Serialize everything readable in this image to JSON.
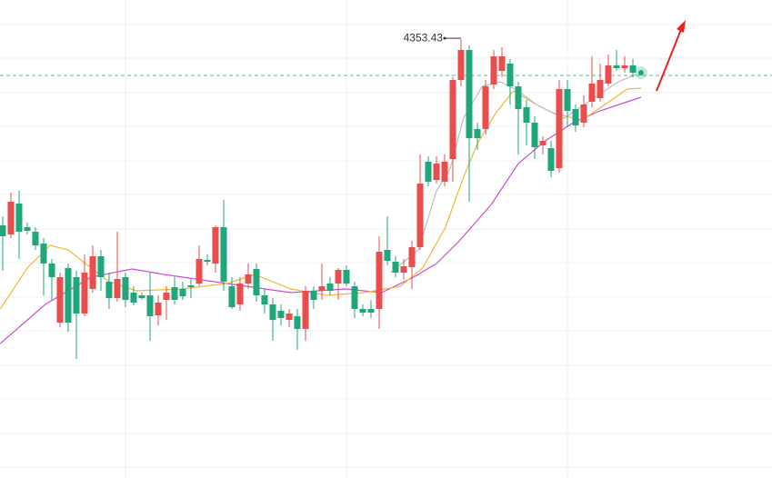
{
  "chart_data": {
    "type": "candlestick",
    "xlim": [
      -0.33,
      94
    ],
    "ylim": [
      4112,
      4375
    ],
    "xticks": [
      15,
      42,
      69
    ],
    "yticks": [
      4361.5,
      4343,
      4324,
      4305.5,
      4286.5,
      4268,
      4249,
      4230.5,
      4211.5,
      4193,
      4174,
      4155.5,
      4136.5,
      4118
    ],
    "grid": true,
    "up_color": "#eb4d4d",
    "down_color": "#1fa67a",
    "open": [
      4251,
      4246,
      4263,
      4250,
      4247.5,
      4241,
      4230,
      4197.5,
      4227.5,
      4222.5,
      4202.5,
      4216,
      4234,
      4220,
      4211,
      4222.5,
      4214,
      4212.5,
      4212.5,
      4201.5,
      4210,
      4217,
      4216,
      4218,
      4219,
      4232,
      4230,
      4250,
      4217.5,
      4207.5,
      4219,
      4227,
      4212.5,
      4207.5,
      4204,
      4199,
      4201,
      4194,
      4215,
      4215,
      4219,
      4219,
      4226.5,
      4217.5,
      4205,
      4205,
      4205,
      4237.5,
      4231,
      4225,
      4228,
      4239,
      4286,
      4276,
      4275,
      4287.5,
      4331,
      4347.5,
      4304,
      4304,
      4328.5,
      4336,
      4340,
      4327.5,
      4316,
      4307.5,
      4295,
      4293.5,
      4282.5,
      4326,
      4315,
      4307.5,
      4319,
      4321,
      4329,
      4339,
      4337.5,
      4339
    ],
    "high": [
      4256,
      4269,
      4270,
      4252.5,
      4250,
      4244,
      4232.5,
      4225,
      4230,
      4226,
      4235,
      4240,
      4237.5,
      4225,
      4247.5,
      4225,
      4217.5,
      4214,
      4225,
      4212.5,
      4217.5,
      4222.5,
      4220,
      4222,
      4240,
      4235,
      4251,
      4265,
      4222.5,
      4222.5,
      4230,
      4230,
      4216,
      4211,
      4207.5,
      4205,
      4205,
      4217.5,
      4217.5,
      4230,
      4222.5,
      4227.5,
      4229,
      4220,
      4207.5,
      4210,
      4245,
      4256,
      4234,
      4232.5,
      4242.5,
      4290,
      4289,
      4289,
      4290,
      4332.5,
      4353.43,
      4350,
      4307.5,
      4331,
      4347.5,
      4349,
      4342.5,
      4330,
      4320,
      4311,
      4300,
      4297.5,
      4331,
      4331,
      4317.5,
      4322.5,
      4344,
      4340,
      4345,
      4347.5,
      4344,
      4342.5
    ],
    "low": [
      4226,
      4244,
      4232.5,
      4246,
      4237.5,
      4212.5,
      4210,
      4195,
      4192.5,
      4177.5,
      4201,
      4214,
      4215,
      4205,
      4209,
      4206,
      4207,
      4210,
      4187.5,
      4196,
      4199,
      4207.5,
      4210,
      4211,
      4217.5,
      4229,
      4225,
      4215,
      4205,
      4204,
      4216,
      4209,
      4202.5,
      4187.5,
      4196,
      4195,
      4182.5,
      4187.5,
      4205,
      4210,
      4212.5,
      4210,
      4217.5,
      4200,
      4201,
      4200,
      4194,
      4229,
      4222.5,
      4221,
      4216,
      4237.5,
      4272.5,
      4274,
      4272.5,
      4275,
      4327.5,
      4264,
      4292.5,
      4301,
      4326,
      4332.5,
      4317.5,
      4290,
      4295,
      4287.5,
      4290,
      4277.5,
      4280,
      4305,
      4302.5,
      4305,
      4316,
      4319,
      4327.5,
      4336,
      4335,
      4332.5
    ],
    "close": [
      4245,
      4264,
      4247.5,
      4248,
      4240,
      4230,
      4222.5,
      4222.5,
      4197.5,
      4202.5,
      4225,
      4234,
      4222.5,
      4211,
      4221.5,
      4210,
      4208.5,
      4211,
      4201,
      4208.5,
      4214,
      4210,
      4212,
      4217,
      4232.5,
      4231,
      4250,
      4220,
      4206,
      4219,
      4224,
      4212.5,
      4207.5,
      4199,
      4200,
      4202.5,
      4194,
      4215,
      4210,
      4217.5,
      4215,
      4226.5,
      4219,
      4205,
      4203,
      4203,
      4236.5,
      4231.5,
      4225,
      4228.5,
      4239,
      4274,
      4275,
      4285,
      4286,
      4331,
      4347.5,
      4299,
      4299,
      4327.5,
      4344,
      4344,
      4327.5,
      4315,
      4307.5,
      4294,
      4297.5,
      4281,
      4326,
      4314,
      4306,
      4317.5,
      4329,
      4331,
      4339,
      4337.5,
      4339,
      4335
    ],
    "lines": [
      {
        "color": "#c94fd1",
        "x": [
          -0.3,
          5.2,
          10.8,
          15.8,
          19.7,
          27.4,
          35.2,
          41.9,
          46.3,
          50.2,
          53,
          55.8,
          59.7,
          63,
          66.3,
          69.7,
          73,
          76.3,
          78
        ],
        "values": [
          4186,
          4207.5,
          4222.5,
          4227,
          4224,
          4219,
          4214,
          4216,
          4214,
          4222.5,
          4230,
          4242.5,
          4262.5,
          4285,
          4297.5,
          4307.5,
          4314,
          4319,
          4321.5
        ]
      },
      {
        "color": "#f0b73a",
        "x": [
          -0.3,
          3,
          5.8,
          8,
          10.8,
          13,
          16.3,
          21.9,
          27.4,
          30.8,
          35.2,
          39.7,
          44.1,
          48.6,
          51.3,
          54.1,
          56.3,
          58,
          60.2,
          62.4,
          65.2,
          67.4,
          70.8,
          74.1,
          76.3,
          78
        ],
        "values": [
          4205,
          4227.5,
          4240,
          4237.5,
          4227.5,
          4220,
          4215,
          4216,
          4219,
          4224,
          4216,
          4212.5,
          4214,
          4217.5,
          4227.5,
          4250,
          4277.5,
          4296,
          4312.5,
          4325,
          4317.5,
          4312.5,
          4309,
          4319,
          4326,
          4326.5
        ]
      },
      {
        "color": "#bdbdbd",
        "x": [
          47.4,
          50.8,
          53,
          54.7,
          56.3,
          58.6,
          60.8,
          63,
          65.2,
          68.6,
          71.9,
          75.2,
          77.4
        ],
        "values": [
          4225,
          4237.5,
          4270,
          4282.5,
          4310,
          4327.5,
          4330,
          4325,
          4317.5,
          4310,
          4320,
          4330,
          4334
        ]
      }
    ],
    "price_line": 4333.5,
    "price_line_color": "#5fb8a0",
    "annotations": [
      {
        "x": 56,
        "y": 4353.43,
        "label": "4353.43"
      }
    ]
  }
}
